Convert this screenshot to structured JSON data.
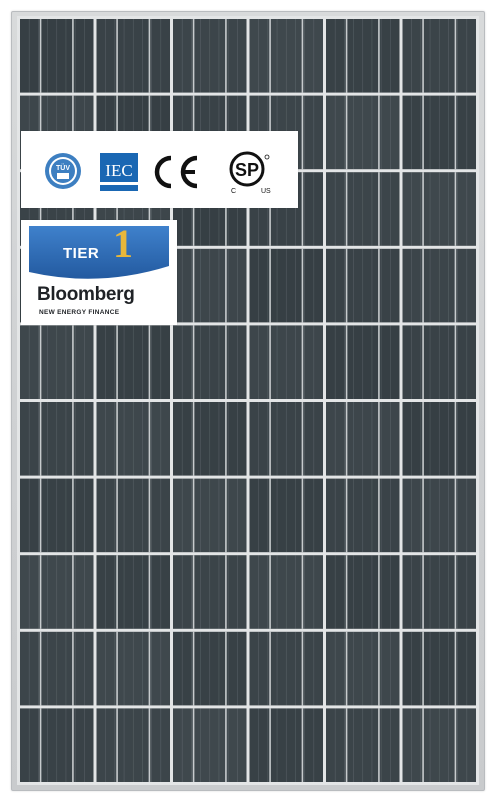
{
  "product": {
    "description_colors": {
      "frame": "#cfd1d3",
      "cell": "#3b4348",
      "busbar": "#c7cbcd",
      "gap": "#e3e5e6"
    }
  },
  "certifications": [
    {
      "name": "tuv-logo",
      "text": "TÜV"
    },
    {
      "name": "iec-logo",
      "text": "IEC"
    },
    {
      "name": "ce-logo",
      "text": "CE"
    },
    {
      "name": "csa-logo",
      "text": "SP",
      "sub_left": "C",
      "sub_right": "US"
    }
  ],
  "tier_badge": {
    "label": "TIER",
    "number": "1",
    "brand": "Bloomberg",
    "subtitle": "NEW ENERGY FINANCE",
    "colors": {
      "ribbon": "#2f6db5",
      "number": "#e8b73a"
    }
  }
}
